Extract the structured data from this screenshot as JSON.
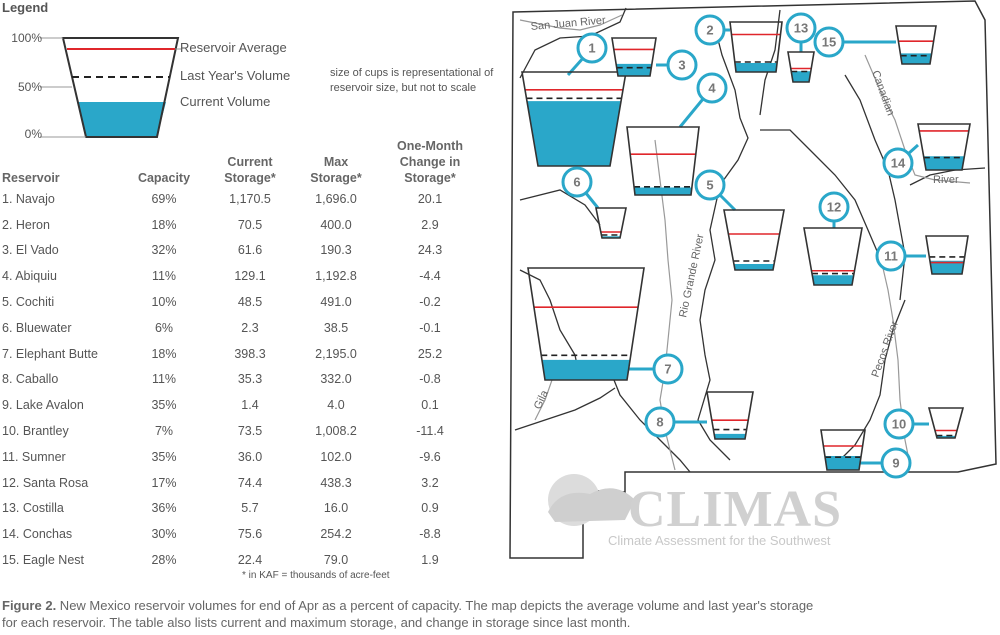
{
  "legend": {
    "title": "Legend",
    "pct_100": "100%",
    "pct_50": "50%",
    "pct_0": "0%",
    "reservoir_average": "Reservoir Average",
    "last_year": "Last Year's Volume",
    "current": "Current Volume",
    "note": "size of cups is representational of reservoir size, but not to scale"
  },
  "colors": {
    "water": "#2aa7c9",
    "average_line": "#e0262b",
    "last_year_line": "#222222",
    "badge": "#2aa7c9"
  },
  "table": {
    "headers": {
      "reservoir": "Reservoir",
      "capacity": "Capacity",
      "current": [
        "Current",
        "Storage*"
      ],
      "max": [
        "Max",
        "Storage*"
      ],
      "change": [
        "One-Month",
        "Change in",
        "Storage*"
      ]
    },
    "rows": [
      {
        "name": "1. Navajo",
        "capacity": "69%",
        "current": "1,170.5",
        "max": "1,696.0",
        "change": "20.1"
      },
      {
        "name": "2. Heron",
        "capacity": "18%",
        "current": "70.5",
        "max": "400.0",
        "change": "2.9"
      },
      {
        "name": "3. El Vado",
        "capacity": "32%",
        "current": "61.6",
        "max": "190.3",
        "change": "24.3"
      },
      {
        "name": "4. Abiquiu",
        "capacity": "11%",
        "current": "129.1",
        "max": "1,192.8",
        "change": "-4.4"
      },
      {
        "name": "5. Cochiti",
        "capacity": "10%",
        "current": "48.5",
        "max": "491.0",
        "change": "-0.2"
      },
      {
        "name": "6. Bluewater",
        "capacity": "6%",
        "current": "2.3",
        "max": "38.5",
        "change": "-0.1"
      },
      {
        "name": "7. Elephant Butte",
        "capacity": "18%",
        "current": "398.3",
        "max": "2,195.0",
        "change": "25.2"
      },
      {
        "name": "8. Caballo",
        "capacity": "11%",
        "current": "35.3",
        "max": "332.0",
        "change": "-0.8"
      },
      {
        "name": "9. Lake Avalon",
        "capacity": "35%",
        "current": "1.4",
        "max": "4.0",
        "change": "0.1"
      },
      {
        "name": "10. Brantley",
        "capacity": "7%",
        "current": "73.5",
        "max": "1,008.2",
        "change": "-11.4"
      },
      {
        "name": "11. Sumner",
        "capacity": "35%",
        "current": "36.0",
        "max": "102.0",
        "change": "-9.6"
      },
      {
        "name": "12. Santa Rosa",
        "capacity": "17%",
        "current": "74.4",
        "max": "438.3",
        "change": "3.2"
      },
      {
        "name": "13. Costilla",
        "capacity": "36%",
        "current": "5.7",
        "max": "16.0",
        "change": "0.9"
      },
      {
        "name": "14. Conchas",
        "capacity": "30%",
        "current": "75.6",
        "max": "254.2",
        "change": "-8.8"
      },
      {
        "name": "15. Eagle Nest",
        "capacity": "28%",
        "current": "22.4",
        "max": "79.0",
        "change": "1.9"
      }
    ],
    "footnote": "* in KAF = thousands of acre-feet"
  },
  "caption": {
    "label": "Figure 2.",
    "text": " New Mexico reservoir volumes for end of Apr as a percent of capacity. The map depicts the average volume and last year's storage for each reservoir. The table also lists current and maximum storage, and change in storage since last month."
  },
  "map": {
    "rivers": {
      "san_juan": "San Juan River",
      "rio_grande": "Rio Grande River",
      "canadian": "Canadian",
      "river": "River",
      "pecos": "Pecos River",
      "gila": "Gila"
    },
    "logo": {
      "name": "CLIMAS",
      "subtitle": "Climate Assessment for the Southwest"
    }
  },
  "chart_data": {
    "type": "table",
    "title": "",
    "units": "KAF",
    "reservoirs": [
      {
        "id": 1,
        "name": "Navajo",
        "capacity_pct": 69,
        "current": 1170.5,
        "max": 1696.0,
        "change": 20.1
      },
      {
        "id": 2,
        "name": "Heron",
        "capacity_pct": 18,
        "current": 70.5,
        "max": 400.0,
        "change": 2.9
      },
      {
        "id": 3,
        "name": "El Vado",
        "capacity_pct": 32,
        "current": 61.6,
        "max": 190.3,
        "change": 24.3
      },
      {
        "id": 4,
        "name": "Abiquiu",
        "capacity_pct": 11,
        "current": 129.1,
        "max": 1192.8,
        "change": -4.4
      },
      {
        "id": 5,
        "name": "Cochiti",
        "capacity_pct": 10,
        "current": 48.5,
        "max": 491.0,
        "change": -0.2
      },
      {
        "id": 6,
        "name": "Bluewater",
        "capacity_pct": 6,
        "current": 2.3,
        "max": 38.5,
        "change": -0.1
      },
      {
        "id": 7,
        "name": "Elephant Butte",
        "capacity_pct": 18,
        "current": 398.3,
        "max": 2195.0,
        "change": 25.2
      },
      {
        "id": 8,
        "name": "Caballo",
        "capacity_pct": 11,
        "current": 35.3,
        "max": 332.0,
        "change": -0.8
      },
      {
        "id": 9,
        "name": "Lake Avalon",
        "capacity_pct": 35,
        "current": 1.4,
        "max": 4.0,
        "change": 0.1
      },
      {
        "id": 10,
        "name": "Brantley",
        "capacity_pct": 7,
        "current": 73.5,
        "max": 1008.2,
        "change": -11.4
      },
      {
        "id": 11,
        "name": "Sumner",
        "capacity_pct": 35,
        "current": 36.0,
        "max": 102.0,
        "change": -9.6
      },
      {
        "id": 12,
        "name": "Santa Rosa",
        "capacity_pct": 17,
        "current": 74.4,
        "max": 438.3,
        "change": 3.2
      },
      {
        "id": 13,
        "name": "Costilla",
        "capacity_pct": 36,
        "current": 5.7,
        "max": 16.0,
        "change": 0.9
      },
      {
        "id": 14,
        "name": "Conchas",
        "capacity_pct": 30,
        "current": 75.6,
        "max": 254.2,
        "change": -8.8
      },
      {
        "id": 15,
        "name": "Eagle Nest",
        "capacity_pct": 28,
        "current": 22.4,
        "max": 79.0,
        "change": 1.9
      }
    ],
    "reservoir_average_pct": [
      81,
      75,
      70,
      60,
      60,
      20,
      65,
      40,
      60,
      25,
      30,
      25,
      45,
      85,
      60
    ],
    "last_year_pct": [
      72,
      20,
      22,
      12,
      15,
      10,
      22,
      20,
      32,
      8,
      45,
      20,
      35,
      27,
      22
    ]
  }
}
